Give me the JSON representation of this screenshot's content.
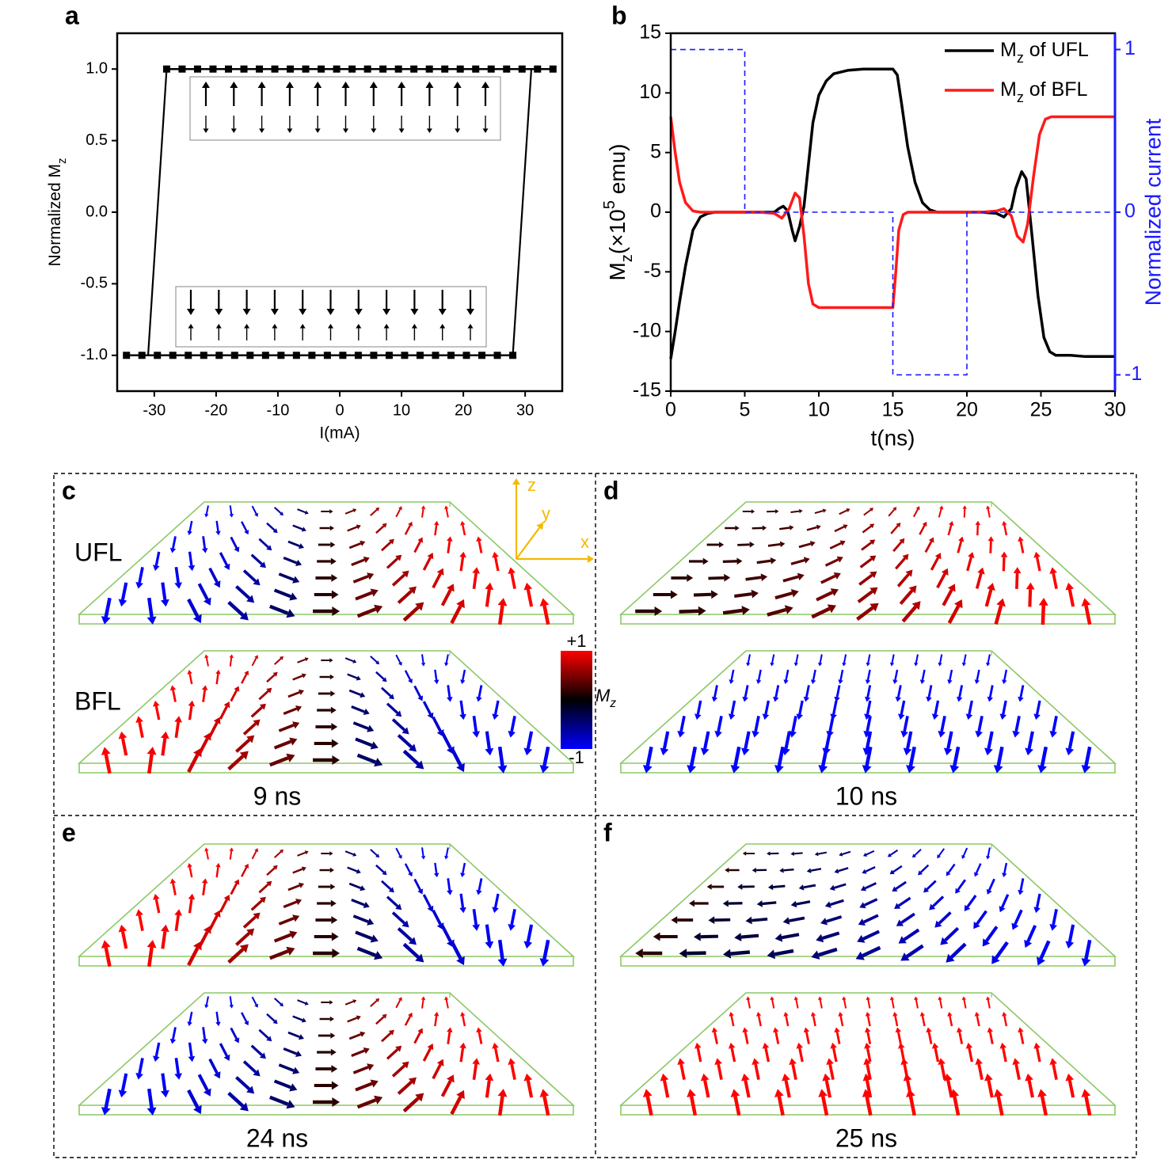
{
  "chart_data": [
    {
      "type": "line",
      "panel": "a",
      "xlabel": "I(mA)",
      "ylabel": [
        {
          "text": "Normalized M"
        },
        {
          "text": "z",
          "shift": "sub"
        }
      ],
      "xlim": [
        -36,
        36
      ],
      "xticks": [
        -30,
        -20,
        -10,
        0,
        10,
        20,
        30
      ],
      "ylim": [
        -1.25,
        1.25
      ],
      "yticks": [
        {
          "value": -1,
          "label": "-1.0"
        },
        -0.5,
        {
          "value": 0,
          "label": "0.0"
        },
        0.5,
        {
          "value": 1,
          "label": "1.0"
        }
      ],
      "series": [
        {
          "color": "#000000",
          "marker": "square",
          "x": [
            -28,
            -25.5,
            -23,
            -20.5,
            -18,
            -15.5,
            -13,
            -10.5,
            -8,
            -5.5,
            -3,
            -0.5,
            2,
            4.5,
            7,
            9.5,
            12,
            14.5,
            17,
            19.5,
            22,
            24.5,
            27,
            29.5,
            32,
            34.5
          ],
          "values": [
            1,
            1,
            1,
            1,
            1,
            1,
            1,
            1,
            1,
            1,
            1,
            1,
            1,
            1,
            1,
            1,
            1,
            1,
            1,
            1,
            1,
            1,
            1,
            1,
            1,
            1
          ]
        },
        {
          "color": "#000000",
          "marker": "square",
          "x": [
            -34.5,
            -32,
            -29.5,
            -27,
            -24.5,
            -22,
            -19.5,
            -17,
            -14.5,
            -12,
            -9.5,
            -7,
            -4.5,
            -2,
            0.5,
            3,
            5.5,
            8,
            10.5,
            13,
            15.5,
            18,
            20.5,
            23,
            25.5,
            28
          ],
          "values": [
            -1,
            -1,
            -1,
            -1,
            -1,
            -1,
            -1,
            -1,
            -1,
            -1,
            -1,
            -1,
            -1,
            -1,
            -1,
            -1,
            -1,
            -1,
            -1,
            -1,
            -1,
            -1,
            -1,
            -1,
            -1,
            -1
          ]
        },
        {
          "color": "#000000",
          "x": [
            -28,
            -31,
            null,
            28,
            31
          ],
          "values": [
            1,
            -1,
            null,
            -1,
            1
          ]
        }
      ]
    },
    {
      "type": "line",
      "panel": "b",
      "xlabel": "t(ns)",
      "ylabel": [
        {
          "text": "M"
        },
        {
          "text": "z",
          "shift": "sub"
        },
        {
          "text": "(×10"
        },
        {
          "text": "5",
          "shift": "super"
        },
        {
          "text": " emu)"
        }
      ],
      "y2label": "Normalized current",
      "y2color": "#1a1aff",
      "xlim": [
        0,
        30
      ],
      "xticks": [
        0,
        5,
        10,
        15,
        20,
        25,
        30
      ],
      "ylim": [
        -15,
        15
      ],
      "yticks": [
        -15,
        -10,
        -5,
        0,
        5,
        10,
        15
      ],
      "y2lim": [
        -1.1,
        1.1
      ],
      "y2ticks": [
        -1,
        0,
        1
      ],
      "legend": "upper right",
      "series": [
        {
          "name": [
            {
              "text": "M"
            },
            {
              "text": "z",
              "shift": "sub"
            },
            {
              "text": " of UFL"
            }
          ],
          "color": "#000000",
          "x": [
            0,
            0.3,
            0.6,
            1,
            1.5,
            2,
            2.5,
            3,
            4,
            5,
            6,
            7,
            7.3,
            7.6,
            7.9,
            8.2,
            8.4,
            8.7,
            9,
            9.3,
            9.6,
            10,
            10.5,
            11,
            12,
            13,
            14,
            15,
            15.3,
            15.6,
            16,
            16.5,
            17,
            17.5,
            18,
            19,
            20,
            21,
            22,
            22.5,
            23,
            23.3,
            23.7,
            24,
            24.4,
            24.8,
            25.2,
            25.6,
            26,
            27,
            28,
            29,
            30
          ],
          "values": [
            -12.3,
            -10,
            -7.5,
            -4.5,
            -1.5,
            -0.4,
            -0.1,
            0,
            0,
            0,
            0,
            0,
            0.3,
            0.5,
            0.1,
            -1.5,
            -2.4,
            -1.2,
            0.5,
            4,
            7.5,
            9.8,
            11,
            11.6,
            11.9,
            12,
            12,
            12,
            11.5,
            9,
            5.5,
            2.5,
            0.8,
            0.2,
            0,
            0,
            0,
            0,
            -0.1,
            -0.4,
            0.3,
            2,
            3.4,
            2.8,
            -2,
            -7,
            -10.5,
            -11.7,
            -12,
            -12,
            -12.1,
            -12.1,
            -12.1
          ]
        },
        {
          "name": [
            {
              "text": "M"
            },
            {
              "text": "z",
              "shift": "sub"
            },
            {
              "text": " of BFL"
            }
          ],
          "color": "#ff1a1a",
          "x": [
            0,
            0.3,
            0.6,
            1,
            1.5,
            2,
            3,
            4,
            5,
            6,
            7,
            7.5,
            8,
            8.4,
            8.7,
            9,
            9.3,
            9.6,
            10,
            11,
            12,
            13,
            14,
            15,
            15.2,
            15.4,
            15.7,
            16,
            17,
            18,
            19,
            20,
            21,
            22,
            22.5,
            23,
            23.4,
            23.8,
            24.1,
            24.5,
            24.9,
            25.3,
            25.7,
            26,
            27,
            28,
            29,
            30
          ],
          "values": [
            8,
            5,
            2.5,
            0.8,
            0.1,
            0,
            0,
            0,
            0,
            0,
            -0.1,
            -0.5,
            0.3,
            1.6,
            1.2,
            -2,
            -6,
            -7.7,
            -8,
            -8,
            -8,
            -8,
            -8,
            -8,
            -5,
            -1.5,
            -0.2,
            0,
            0,
            0,
            0,
            0,
            0,
            0.1,
            0.3,
            -0.3,
            -2,
            -2.5,
            -1,
            3,
            6.5,
            7.8,
            8,
            8,
            8,
            8,
            8,
            8
          ]
        },
        {
          "color": "#1a1aff",
          "axis": "y2",
          "linestyle": "dashed",
          "x": [
            0,
            5,
            5,
            15,
            15,
            20,
            20,
            30
          ],
          "values": [
            1,
            1,
            0,
            0,
            -1,
            -1,
            0,
            0
          ]
        }
      ]
    }
  ],
  "spin_panels": [
    {
      "label": "c",
      "time": "9 ns"
    },
    {
      "label": "d",
      "time": "10 ns"
    },
    {
      "label": "e",
      "time": "24 ns"
    },
    {
      "label": "f",
      "time": "25 ns"
    }
  ],
  "layer_labels": [
    "UFL",
    "BFL"
  ],
  "colorbar": {
    "max": "+1",
    "min": "-1",
    "label": "M",
    "label_sub": "z"
  },
  "axes_glyph": {
    "z": "z",
    "y": "y",
    "x": "x"
  }
}
